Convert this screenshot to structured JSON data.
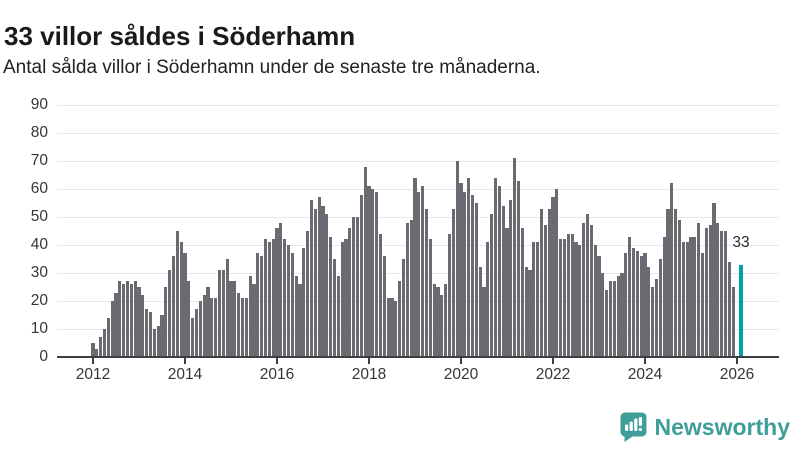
{
  "title": "33 villor såldes i Söderhamn",
  "subtitle": "Antal sålda villor i Söderhamn under de senaste tre månaderna.",
  "branding": {
    "wordmark": "Newsworthy",
    "logo_icon": "newsworthy-speech-bubble-bar-chart-icon"
  },
  "colors": {
    "bar": "#6a6a70",
    "highlight": "#00a1a7",
    "brand_teal": "#3f9e9a",
    "gridline": "#e8e8e8",
    "axis": "#3f3f3f",
    "label_text": "#363636"
  },
  "chart_data": {
    "type": "bar",
    "title": "33 villor såldes i Söderhamn",
    "subtitle": "Antal sålda villor i Söderhamn under de senaste tre månaderna.",
    "frequency": "monthly",
    "x_start": "2012-01",
    "x_tick_labels": [
      "2012",
      "2014",
      "2016",
      "2018",
      "2020",
      "2022",
      "2024",
      "2026"
    ],
    "months_per_tick": 24,
    "ylim": [
      0,
      90
    ],
    "y_ticks": [
      0,
      10,
      20,
      30,
      40,
      50,
      60,
      70,
      80,
      90
    ],
    "grid": true,
    "legend": false,
    "values": [
      5,
      3,
      7,
      10,
      14,
      20,
      23,
      27,
      26,
      27,
      26,
      27,
      25,
      22,
      17,
      16,
      10,
      11,
      15,
      25,
      31,
      36,
      45,
      41,
      37,
      27,
      14,
      17,
      20,
      22,
      25,
      21,
      21,
      31,
      31,
      35,
      27,
      27,
      23,
      21,
      21,
      29,
      26,
      37,
      36,
      42,
      41,
      42,
      46,
      48,
      42,
      40,
      37,
      29,
      26,
      39,
      45,
      56,
      53,
      57,
      54,
      51,
      43,
      35,
      29,
      41,
      42,
      46,
      50,
      50,
      58,
      68,
      61,
      60,
      59,
      44,
      36,
      21,
      21,
      20,
      27,
      35,
      48,
      49,
      64,
      59,
      61,
      53,
      42,
      26,
      25,
      22,
      26,
      44,
      53,
      70,
      62,
      59,
      64,
      58,
      55,
      32,
      25,
      41,
      51,
      64,
      61,
      54,
      46,
      56,
      71,
      63,
      46,
      32,
      31,
      41,
      41,
      53,
      47,
      53,
      57,
      60,
      42,
      42,
      44,
      44,
      41,
      40,
      48,
      51,
      47,
      40,
      36,
      30,
      24,
      27,
      27,
      29,
      30,
      37,
      43,
      39,
      38,
      36,
      37,
      32,
      25,
      28,
      35,
      43,
      53,
      62,
      53,
      49,
      41,
      41,
      43,
      43,
      48,
      37,
      46,
      47,
      55,
      48,
      45,
      45,
      34,
      25,
      null,
      33
    ],
    "highlight": {
      "index": 169,
      "value": 33,
      "label": "33"
    }
  }
}
